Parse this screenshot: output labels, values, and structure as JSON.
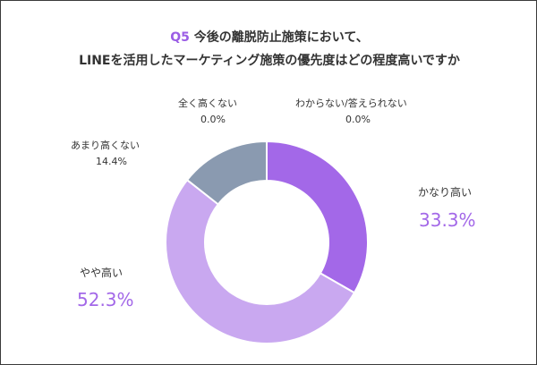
{
  "title": {
    "q_label": "Q5",
    "line1_rest": " 今後の離脱防止施策において、",
    "line2": "LINEを活用したマーケティング施策の優先度はどの程度高いですか"
  },
  "chart_data": {
    "type": "pie",
    "variant": "donut",
    "slices": [
      {
        "label": "かなり高い",
        "value": 33.3,
        "display": "33.3%",
        "color": "#a368e8"
      },
      {
        "label": "やや高い",
        "value": 52.3,
        "display": "52.3%",
        "color": "#c9a8f0"
      },
      {
        "label": "あまり高くない",
        "value": 14.4,
        "display": "14.4%",
        "color": "#8a9ab0"
      },
      {
        "label": "全く高くない",
        "value": 0.0,
        "display": "0.0%",
        "color": "#cccccc"
      },
      {
        "label": "わからない/答えられない",
        "value": 0.0,
        "display": "0.0%",
        "color": "#dddddd"
      }
    ]
  }
}
